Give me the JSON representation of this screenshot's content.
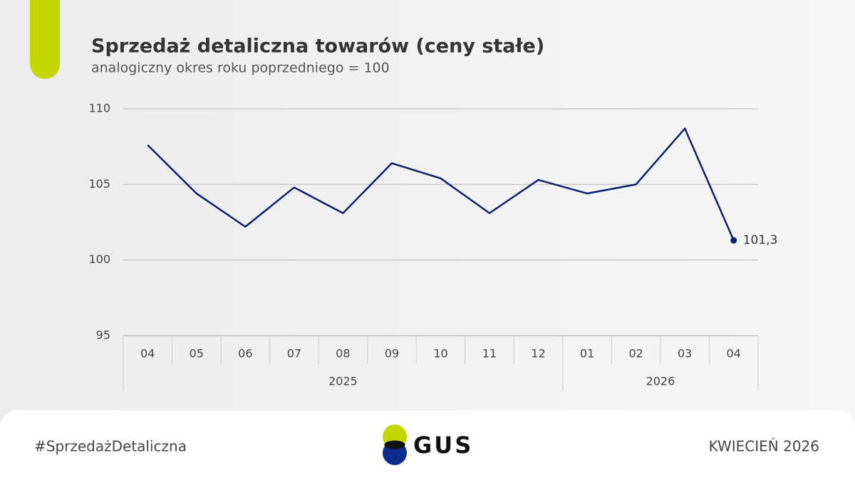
{
  "chart_data": {
    "type": "line",
    "title": "Sprzedaż detaliczna towarów (ceny stałe)",
    "subtitle": "analogiczny okres roku poprzedniego = 100",
    "categories": [
      "04",
      "05",
      "06",
      "07",
      "08",
      "09",
      "10",
      "11",
      "12",
      "01",
      "02",
      "03",
      "04"
    ],
    "x_groups": [
      {
        "label": "2025",
        "count": 9
      },
      {
        "label": "2026",
        "count": 4
      }
    ],
    "series": [
      {
        "color": "#0d1f6e",
        "values": [
          107.6,
          104.4,
          102.2,
          104.8,
          103.1,
          106.4,
          105.4,
          103.1,
          105.3,
          104.4,
          105.0,
          108.7,
          101.3
        ],
        "value_labels": [
          null,
          null,
          null,
          null,
          null,
          null,
          null,
          null,
          null,
          null,
          null,
          null,
          "101,3"
        ]
      }
    ],
    "ylim": [
      95,
      110
    ],
    "yticks": [
      95,
      100,
      105,
      110
    ],
    "grid": true
  },
  "footer": {
    "hashtag": "#SprzedażDetaliczna",
    "logo": "GUS",
    "date": "KWIECIEŃ 2026"
  }
}
